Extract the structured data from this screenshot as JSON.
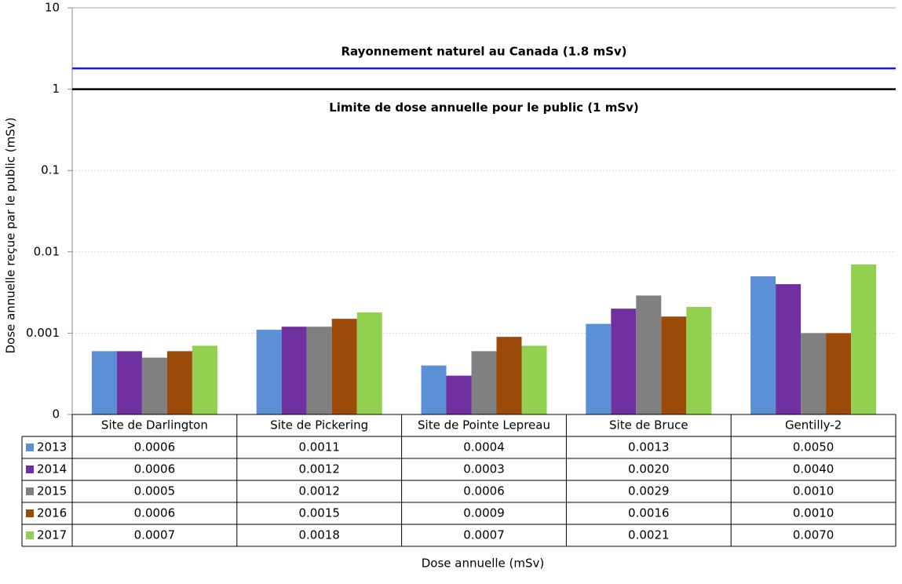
{
  "chart_data": {
    "type": "bar",
    "categories": [
      "Site de Darlington",
      "Site de Pickering",
      "Site de Pointe Lepreau",
      "Site de Bruce",
      "Gentilly-2"
    ],
    "series": [
      {
        "name": "2013",
        "color": "#5b8fd6",
        "values": [
          0.0006,
          0.0011,
          0.0004,
          0.0013,
          0.005
        ],
        "value_labels": [
          "0.0006",
          "0.0011",
          "0.0004",
          "0.0013",
          "0.0050"
        ]
      },
      {
        "name": "2014",
        "color": "#7030a0",
        "values": [
          0.0006,
          0.0012,
          0.0003,
          0.002,
          0.004
        ],
        "value_labels": [
          "0.0006",
          "0.0012",
          "0.0003",
          "0.0020",
          "0.0040"
        ]
      },
      {
        "name": "2015",
        "color": "#808080",
        "values": [
          0.0005,
          0.0012,
          0.0006,
          0.0029,
          0.001
        ],
        "value_labels": [
          "0.0005",
          "0.0012",
          "0.0006",
          "0.0029",
          "0.0010"
        ]
      },
      {
        "name": "2016",
        "color": "#9c4a0a",
        "values": [
          0.0006,
          0.0015,
          0.0009,
          0.0016,
          0.001
        ],
        "value_labels": [
          "0.0006",
          "0.0015",
          "0.0009",
          "0.0016",
          "0.0010"
        ]
      },
      {
        "name": "2017",
        "color": "#92d050",
        "values": [
          0.0007,
          0.0018,
          0.0007,
          0.0021,
          0.007
        ],
        "value_labels": [
          "0.0007",
          "0.0018",
          "0.0007",
          "0.0021",
          "0.0070"
        ]
      }
    ],
    "ylabel": "Dose annuelle reçue par le public (mSv)",
    "xlabel": "Dose annuelle (mSv)",
    "yscale": "log",
    "ylim": [
      0.0001,
      10
    ],
    "yticks": [
      {
        "value": 0.0001,
        "label": "0"
      },
      0.001,
      0.01,
      0.1,
      1,
      10
    ],
    "grid": true,
    "reference_lines": [
      {
        "label": "Rayonnement naturel au Canada  (1.8 mSv)",
        "value": 1.8,
        "color": "#1a1ad6"
      },
      {
        "label": "Limite de dose annuelle pour le public (1 mSv)",
        "value": 1,
        "color": "#000000"
      }
    ]
  }
}
